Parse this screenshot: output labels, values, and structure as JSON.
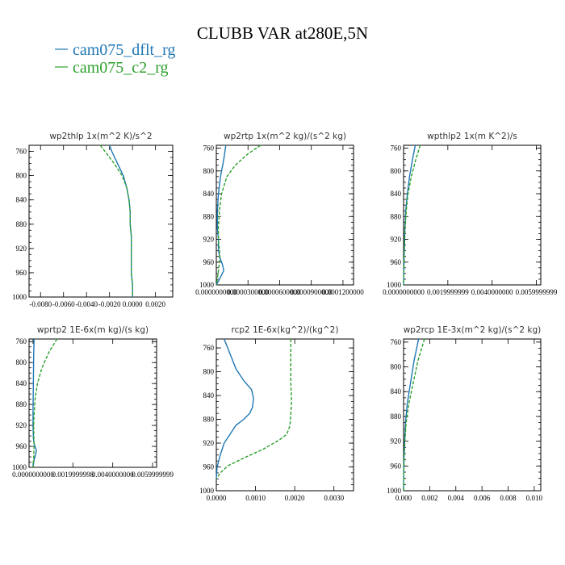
{
  "figure": {
    "title": "CLUBB VAR at280E,5N",
    "legend": [
      {
        "label": "cam075_dflt_rg",
        "color": "#1f77b4"
      },
      {
        "label": "cam075_c2_rg",
        "color": "#2ca02c"
      }
    ]
  },
  "chart_data": [
    {
      "type": "line",
      "title": "wp2thlp   1x(m^2 K)/s^2",
      "y_label_values": [
        "760",
        "800",
        "840",
        "880",
        "920",
        "960",
        "1000"
      ],
      "ylim": [
        1000,
        750
      ],
      "xlim": [
        -0.009,
        0.0035
      ],
      "x_tick_labels": [
        {
          "v": -0.008,
          "t": "-0.0080"
        },
        {
          "v": -0.006,
          "t": "-0.0060"
        },
        {
          "v": -0.004,
          "t": "-0.0040"
        },
        {
          "v": -0.002,
          "t": "-0.0020"
        },
        {
          "v": 0.0,
          "t": "0.0000"
        },
        {
          "v": 0.002,
          "t": "0.0020"
        }
      ],
      "series": [
        {
          "name": "cam075_dflt_rg",
          "color": "#1f77b4",
          "dashed": false,
          "x": [
            -0.002,
            -0.0018,
            -0.0013,
            -0.0008,
            -0.0005,
            -0.0003,
            -0.0002,
            -0.0002,
            -0.0001,
            -0.0001,
            -0.0001,
            -0.0001,
            0.0,
            0.0
          ],
          "y": [
            750,
            760,
            780,
            800,
            820,
            840,
            860,
            880,
            900,
            920,
            940,
            960,
            980,
            1000
          ]
        },
        {
          "name": "cam075_c2_rg",
          "color": "#2ca02c",
          "dashed": true,
          "x": [
            -0.0028,
            -0.0024,
            -0.0016,
            -0.0009,
            -0.0005,
            -0.0003,
            -0.0002,
            -0.0002,
            -0.0001,
            -0.0001,
            -0.0001,
            -0.0001,
            0.0,
            0.0
          ],
          "y": [
            750,
            760,
            780,
            800,
            820,
            840,
            860,
            880,
            900,
            920,
            940,
            960,
            980,
            1000
          ]
        }
      ]
    },
    {
      "type": "line",
      "title": "wp2rtp   1x(m^2 kg)/(s^2 kg)",
      "y_label_values": [
        "760",
        "800",
        "840",
        "880",
        "920",
        "960",
        "1000"
      ],
      "ylim": [
        1000,
        755
      ],
      "xlim": [
        0.0,
        0.00013
      ],
      "x_tick_labels": [
        {
          "v": 0.0,
          "t": "0.0000000000"
        },
        {
          "v": 3e-05,
          "t": "0.0000300000"
        },
        {
          "v": 6e-05,
          "t": "0.0000600000"
        },
        {
          "v": 9e-05,
          "t": "0.0000900000"
        },
        {
          "v": 0.00012,
          "t": "0.0001200000"
        }
      ],
      "series": [
        {
          "name": "cam075_dflt_rg",
          "color": "#1f77b4",
          "dashed": false,
          "x": [
            9e-06,
            7e-06,
            4e-06,
            2e-06,
            1e-06,
            1e-06,
            2e-06,
            2e-06,
            4e-06,
            6e-06,
            7e-06,
            3e-06,
            0.0
          ],
          "y": [
            755,
            780,
            810,
            840,
            870,
            900,
            920,
            940,
            955,
            965,
            975,
            990,
            1000
          ]
        },
        {
          "name": "cam075_c2_rg",
          "color": "#2ca02c",
          "dashed": true,
          "x": [
            4.2e-05,
            3e-05,
            1.8e-05,
            1e-05,
            5e-06,
            3e-06,
            2e-06,
            2e-06,
            3e-06,
            3e-06,
            2e-06,
            1e-06,
            0.0
          ],
          "y": [
            755,
            770,
            790,
            810,
            840,
            870,
            900,
            920,
            940,
            960,
            975,
            990,
            1000
          ]
        }
      ]
    },
    {
      "type": "line",
      "title": "wpthlp2   1x(m K^2)/s",
      "y_label_values": [
        "760",
        "800",
        "840",
        "880",
        "920",
        "960",
        "1000"
      ],
      "ylim": [
        1000,
        755
      ],
      "xlim": [
        0.0,
        0.0062
      ],
      "x_tick_labels": [
        {
          "v": 0.0,
          "t": "0.0000000000"
        },
        {
          "v": 0.002,
          "t": "0.0019999999"
        },
        {
          "v": 0.004,
          "t": "0.0040000000"
        },
        {
          "v": 0.006,
          "t": "0.0059999999"
        }
      ],
      "series": [
        {
          "name": "cam075_dflt_rg",
          "color": "#1f77b4",
          "dashed": false,
          "x": [
            0.00053,
            0.0004,
            0.00027,
            0.00017,
            0.0001,
            6e-05,
            4e-05,
            2e-05,
            1e-05,
            0.0
          ],
          "y": [
            755,
            780,
            810,
            840,
            870,
            900,
            930,
            960,
            980,
            1000
          ]
        },
        {
          "name": "cam075_c2_rg",
          "color": "#2ca02c",
          "dashed": true,
          "x": [
            0.00075,
            0.00055,
            0.00035,
            0.0002,
            0.00012,
            7e-05,
            4e-05,
            2e-05,
            1e-05,
            0.0
          ],
          "y": [
            755,
            780,
            810,
            840,
            870,
            900,
            930,
            960,
            980,
            1000
          ]
        }
      ]
    },
    {
      "type": "line",
      "title": "wprtp2   1E-6x(m kg)/(s kg)",
      "y_label_values": [
        "760",
        "800",
        "840",
        "880",
        "920",
        "960",
        "1000"
      ],
      "ylim": [
        1000,
        755
      ],
      "xlim": [
        -0.0002,
        0.0062
      ],
      "x_tick_labels": [
        {
          "v": 0.0,
          "t": "0.0000000000"
        },
        {
          "v": 0.002,
          "t": "0.0019999998"
        },
        {
          "v": 0.004,
          "t": "0.0040000000"
        },
        {
          "v": 0.006,
          "t": "0.0059999999"
        }
      ],
      "series": [
        {
          "name": "cam075_dflt_rg",
          "color": "#1f77b4",
          "dashed": false,
          "x": [
            5e-05,
            3e-05,
            2e-05,
            1e-05,
            0.0,
            0.0,
            1e-05,
            2e-05,
            5e-05,
            0.00012,
            0.00017,
            0.00013,
            3e-05,
            0.0
          ],
          "y": [
            755,
            790,
            830,
            860,
            890,
            920,
            935,
            945,
            955,
            962,
            968,
            975,
            990,
            1000
          ]
        },
        {
          "name": "cam075_c2_rg",
          "color": "#2ca02c",
          "dashed": true,
          "x": [
            0.0012,
            0.0008,
            0.00045,
            0.00022,
            0.0001,
            5e-05,
            3e-05,
            4e-05,
            5e-05,
            4e-05,
            2e-05,
            0.0
          ],
          "y": [
            755,
            780,
            810,
            840,
            870,
            900,
            920,
            940,
            960,
            975,
            990,
            1000
          ]
        }
      ]
    },
    {
      "type": "line",
      "title": "rcp2   1E-6x(kg^2)/(kg^2)",
      "y_label_values": [
        "760",
        "800",
        "840",
        "880",
        "920",
        "960",
        "1000"
      ],
      "ylim": [
        1000,
        745
      ],
      "xlim": [
        0.0,
        0.0035
      ],
      "x_tick_labels": [
        {
          "v": 0.0,
          "t": "0.0000"
        },
        {
          "v": 0.001,
          "t": "0.0010"
        },
        {
          "v": 0.002,
          "t": "0.0020"
        },
        {
          "v": 0.003,
          "t": "0.0030"
        }
      ],
      "series": [
        {
          "name": "cam075_dflt_rg",
          "color": "#1f77b4",
          "dashed": false,
          "x": [
            0.0002,
            0.00035,
            0.0005,
            0.0007,
            0.0009,
            0.00095,
            0.00092,
            0.00085,
            0.0007,
            0.0005,
            0.00035,
            0.0002,
            0.0001,
            2e-05,
            0.0
          ],
          "y": [
            745,
            770,
            795,
            815,
            830,
            845,
            860,
            870,
            880,
            890,
            905,
            920,
            940,
            960,
            980
          ]
        },
        {
          "name": "cam075_c2_rg",
          "color": "#2ca02c",
          "dashed": true,
          "x": [
            0.0019,
            0.0019,
            0.0019,
            0.00192,
            0.0019,
            0.00188,
            0.0018,
            0.0016,
            0.0012,
            0.0007,
            0.0003,
            0.0001,
            0.0
          ],
          "y": [
            745,
            780,
            820,
            850,
            870,
            890,
            905,
            915,
            930,
            945,
            958,
            970,
            980
          ]
        }
      ]
    },
    {
      "type": "line",
      "title": "wp2rcp   1E-3x(m^2 kg)/(s^2 kg)",
      "y_label_values": [
        "760",
        "800",
        "840",
        "880",
        "920",
        "960",
        "1000"
      ],
      "ylim": [
        1000,
        755
      ],
      "xlim": [
        0.0,
        0.0105
      ],
      "x_tick_labels": [
        {
          "v": 0.0,
          "t": "0.000"
        },
        {
          "v": 0.002,
          "t": "0.002"
        },
        {
          "v": 0.004,
          "t": "0.004"
        },
        {
          "v": 0.006,
          "t": "0.006"
        },
        {
          "v": 0.008,
          "t": "0.008"
        },
        {
          "v": 0.01,
          "t": "0.010"
        }
      ],
      "series": [
        {
          "name": "cam075_dflt_rg",
          "color": "#1f77b4",
          "dashed": false,
          "x": [
            0.00115,
            0.0008,
            0.0005,
            0.00028,
            0.00015,
            8e-05,
            3e-05,
            1e-05,
            0.0
          ],
          "y": [
            755,
            790,
            830,
            860,
            890,
            920,
            950,
            975,
            1000
          ]
        },
        {
          "name": "cam075_c2_rg",
          "color": "#2ca02c",
          "dashed": true,
          "x": [
            0.0016,
            0.0011,
            0.0007,
            0.0004,
            0.0002,
            0.0001,
            4e-05,
            1e-05,
            0.0
          ],
          "y": [
            755,
            790,
            830,
            860,
            890,
            920,
            950,
            975,
            1000
          ]
        }
      ]
    }
  ]
}
